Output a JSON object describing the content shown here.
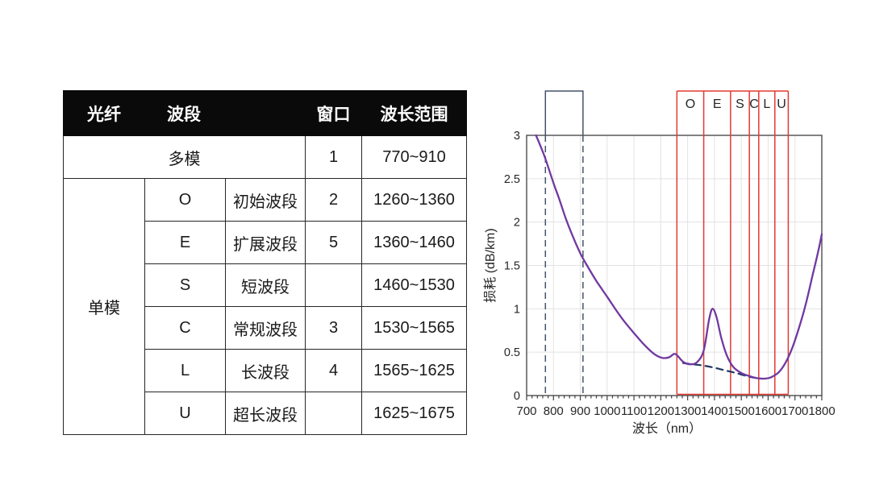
{
  "table": {
    "headers": [
      "光纤",
      "波段",
      "窗口",
      "波长范围"
    ],
    "multimode": {
      "fiber": "多模",
      "window": "1",
      "range": "770~910"
    },
    "singlemode_label": "单模",
    "rows": [
      {
        "band": "O",
        "name": "初始波段",
        "window": "2",
        "range": "1260~1360"
      },
      {
        "band": "E",
        "name": "扩展波段",
        "window": "5",
        "range": "1360~1460"
      },
      {
        "band": "S",
        "name": "短波段",
        "window": "",
        "range": "1460~1530"
      },
      {
        "band": "C",
        "name": "常规波段",
        "window": "3",
        "range": "1530~1565"
      },
      {
        "band": "L",
        "name": "长波段",
        "window": "4",
        "range": "1565~1625"
      },
      {
        "band": "U",
        "name": "超长波段",
        "window": "",
        "range": "1625~1675"
      }
    ]
  },
  "chart_data": {
    "type": "line",
    "title": "",
    "xlabel": "波长（nm）",
    "ylabel": "损耗 (dB/km)",
    "xlim": [
      700,
      1800
    ],
    "ylim": [
      0,
      3
    ],
    "x_ticks": [
      700,
      800,
      900,
      1000,
      1100,
      1200,
      1300,
      1400,
      1500,
      1600,
      1700,
      1800
    ],
    "x_minor_tick_step": 20,
    "y_ticks": [
      0,
      0.5,
      1,
      1.5,
      2,
      2.5,
      3
    ],
    "grid": true,
    "legend_position": "none",
    "series": [
      {
        "name": "attenuation-curve",
        "color": "#7038a0",
        "style": "solid",
        "points": [
          [
            735,
            3.0
          ],
          [
            755,
            2.85
          ],
          [
            770,
            2.73
          ],
          [
            800,
            2.45
          ],
          [
            820,
            2.28
          ],
          [
            845,
            2.05
          ],
          [
            870,
            1.85
          ],
          [
            900,
            1.64
          ],
          [
            925,
            1.5
          ],
          [
            960,
            1.32
          ],
          [
            1000,
            1.14
          ],
          [
            1030,
            1.0
          ],
          [
            1060,
            0.87
          ],
          [
            1100,
            0.72
          ],
          [
            1140,
            0.58
          ],
          [
            1175,
            0.48
          ],
          [
            1205,
            0.435
          ],
          [
            1230,
            0.44
          ],
          [
            1250,
            0.48
          ],
          [
            1262,
            0.46
          ],
          [
            1285,
            0.385
          ],
          [
            1310,
            0.36
          ],
          [
            1335,
            0.385
          ],
          [
            1360,
            0.52
          ],
          [
            1380,
            0.88
          ],
          [
            1393,
            1.0
          ],
          [
            1408,
            0.9
          ],
          [
            1425,
            0.67
          ],
          [
            1445,
            0.47
          ],
          [
            1470,
            0.33
          ],
          [
            1500,
            0.26
          ],
          [
            1530,
            0.225
          ],
          [
            1560,
            0.2
          ],
          [
            1585,
            0.195
          ],
          [
            1610,
            0.21
          ],
          [
            1640,
            0.27
          ],
          [
            1665,
            0.38
          ],
          [
            1690,
            0.55
          ],
          [
            1715,
            0.78
          ],
          [
            1740,
            1.05
          ],
          [
            1765,
            1.38
          ],
          [
            1785,
            1.64
          ],
          [
            1800,
            1.86
          ]
        ]
      },
      {
        "name": "low-water-peak-curve",
        "color": "#1f3864",
        "style": "dashed",
        "points": [
          [
            1283,
            0.375
          ],
          [
            1320,
            0.36
          ],
          [
            1360,
            0.345
          ],
          [
            1400,
            0.32
          ],
          [
            1440,
            0.29
          ],
          [
            1480,
            0.26
          ],
          [
            1520,
            0.225
          ],
          [
            1550,
            0.205
          ],
          [
            1572,
            0.197
          ]
        ]
      }
    ],
    "bands": [
      {
        "label": "O",
        "range": [
          1260,
          1360
        ]
      },
      {
        "label": "E",
        "range": [
          1360,
          1460
        ]
      },
      {
        "label": "S",
        "range": [
          1460,
          1530
        ]
      },
      {
        "label": "C",
        "range": [
          1530,
          1565
        ]
      },
      {
        "label": "L",
        "range": [
          1565,
          1625
        ]
      },
      {
        "label": "U",
        "range": [
          1625,
          1675
        ]
      }
    ],
    "band_color": "#e23a32",
    "multimode_window": {
      "range": [
        770,
        910
      ],
      "color": "#44546a"
    },
    "grid_color": "#e3e3e3",
    "axis_color": "#3f3f3f"
  }
}
